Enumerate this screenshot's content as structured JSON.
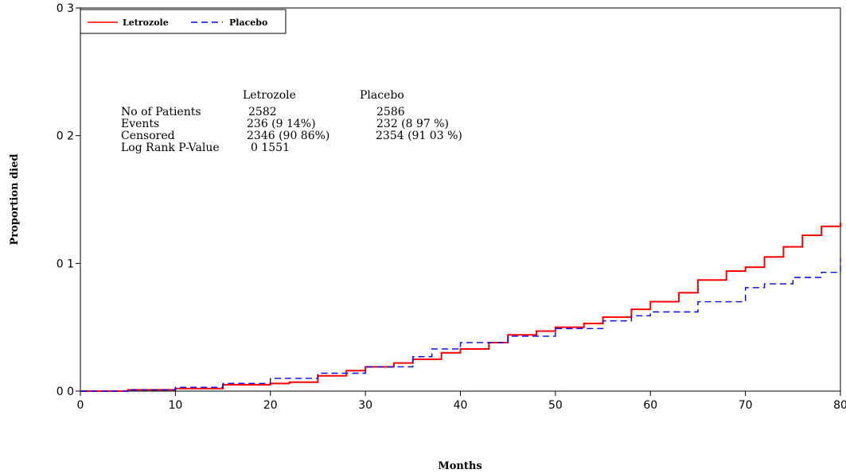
{
  "chart_data": {
    "type": "line",
    "xlabel": "Months",
    "ylabel": "Proportion died",
    "xlim": [
      0,
      80
    ],
    "ylim": [
      0,
      0.3
    ],
    "x_ticks": [
      "0",
      "10",
      "20",
      "30",
      "40",
      "50",
      "60",
      "70",
      "80"
    ],
    "y_ticks": [
      "0 0",
      "0 1",
      "0 2",
      "0 3"
    ],
    "legend": {
      "position": "top-left",
      "items": [
        "Letrozole",
        "Placebo"
      ]
    },
    "series": [
      {
        "name": "Letrozole",
        "color": "#ff0000",
        "style": "solid",
        "x": [
          0,
          5,
          10,
          15,
          20,
          22,
          25,
          28,
          30,
          33,
          35,
          38,
          40,
          43,
          45,
          48,
          50,
          53,
          55,
          58,
          60,
          63,
          65,
          68,
          70,
          72,
          74,
          76,
          78,
          80
        ],
        "y": [
          0,
          0.001,
          0.002,
          0.005,
          0.006,
          0.007,
          0.012,
          0.016,
          0.019,
          0.022,
          0.025,
          0.03,
          0.033,
          0.038,
          0.044,
          0.047,
          0.05,
          0.053,
          0.058,
          0.064,
          0.07,
          0.077,
          0.087,
          0.094,
          0.097,
          0.105,
          0.113,
          0.122,
          0.129,
          0.132
        ]
      },
      {
        "name": "Placebo",
        "color": "#0000ff",
        "style": "dashed",
        "x": [
          0,
          5,
          10,
          15,
          20,
          25,
          30,
          35,
          37,
          40,
          45,
          50,
          55,
          58,
          60,
          65,
          70,
          72,
          75,
          78,
          80
        ],
        "y": [
          0,
          0.001,
          0.003,
          0.006,
          0.01,
          0.014,
          0.019,
          0.027,
          0.033,
          0.038,
          0.043,
          0.049,
          0.055,
          0.059,
          0.062,
          0.07,
          0.081,
          0.084,
          0.089,
          0.093,
          0.104
        ]
      }
    ],
    "stats_table": {
      "col_headers": [
        "Letrozole",
        "Placebo"
      ],
      "rows": [
        {
          "label": "No of Patients",
          "values": [
            "2582",
            "2586"
          ]
        },
        {
          "label": "Events",
          "values": [
            "236 (9 14%)",
            "232 (8 97 %)"
          ]
        },
        {
          "label": "Censored",
          "values": [
            "2346 (90 86%)",
            "2354 (91 03 %)"
          ]
        },
        {
          "label": "Log Rank P-Value",
          "values": [
            "0 1551",
            ""
          ]
        }
      ]
    }
  }
}
